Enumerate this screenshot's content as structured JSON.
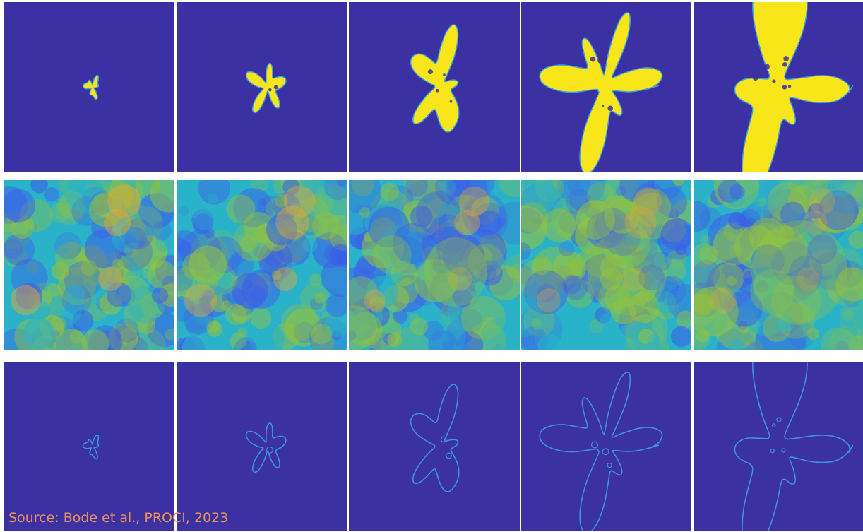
{
  "caption": {
    "text": "Source: Bode et al., PROCI, 2023",
    "color": "#e8905a"
  },
  "palette": {
    "background": "#3b31a2",
    "flame_fill": "#f8e51a",
    "flame_edge": "#3aa0e0",
    "front_line": "#3f8fe6",
    "field_low": "#3d5ee8",
    "field_mid": "#2ab3c8",
    "field_high": "#93c23e",
    "field_peak": "#f0a72c"
  },
  "rows": [
    {
      "row": "flame-region",
      "panels": 5
    },
    {
      "row": "scalar-field",
      "panels": 5
    },
    {
      "row": "flame-front",
      "panels": 5
    }
  ]
}
